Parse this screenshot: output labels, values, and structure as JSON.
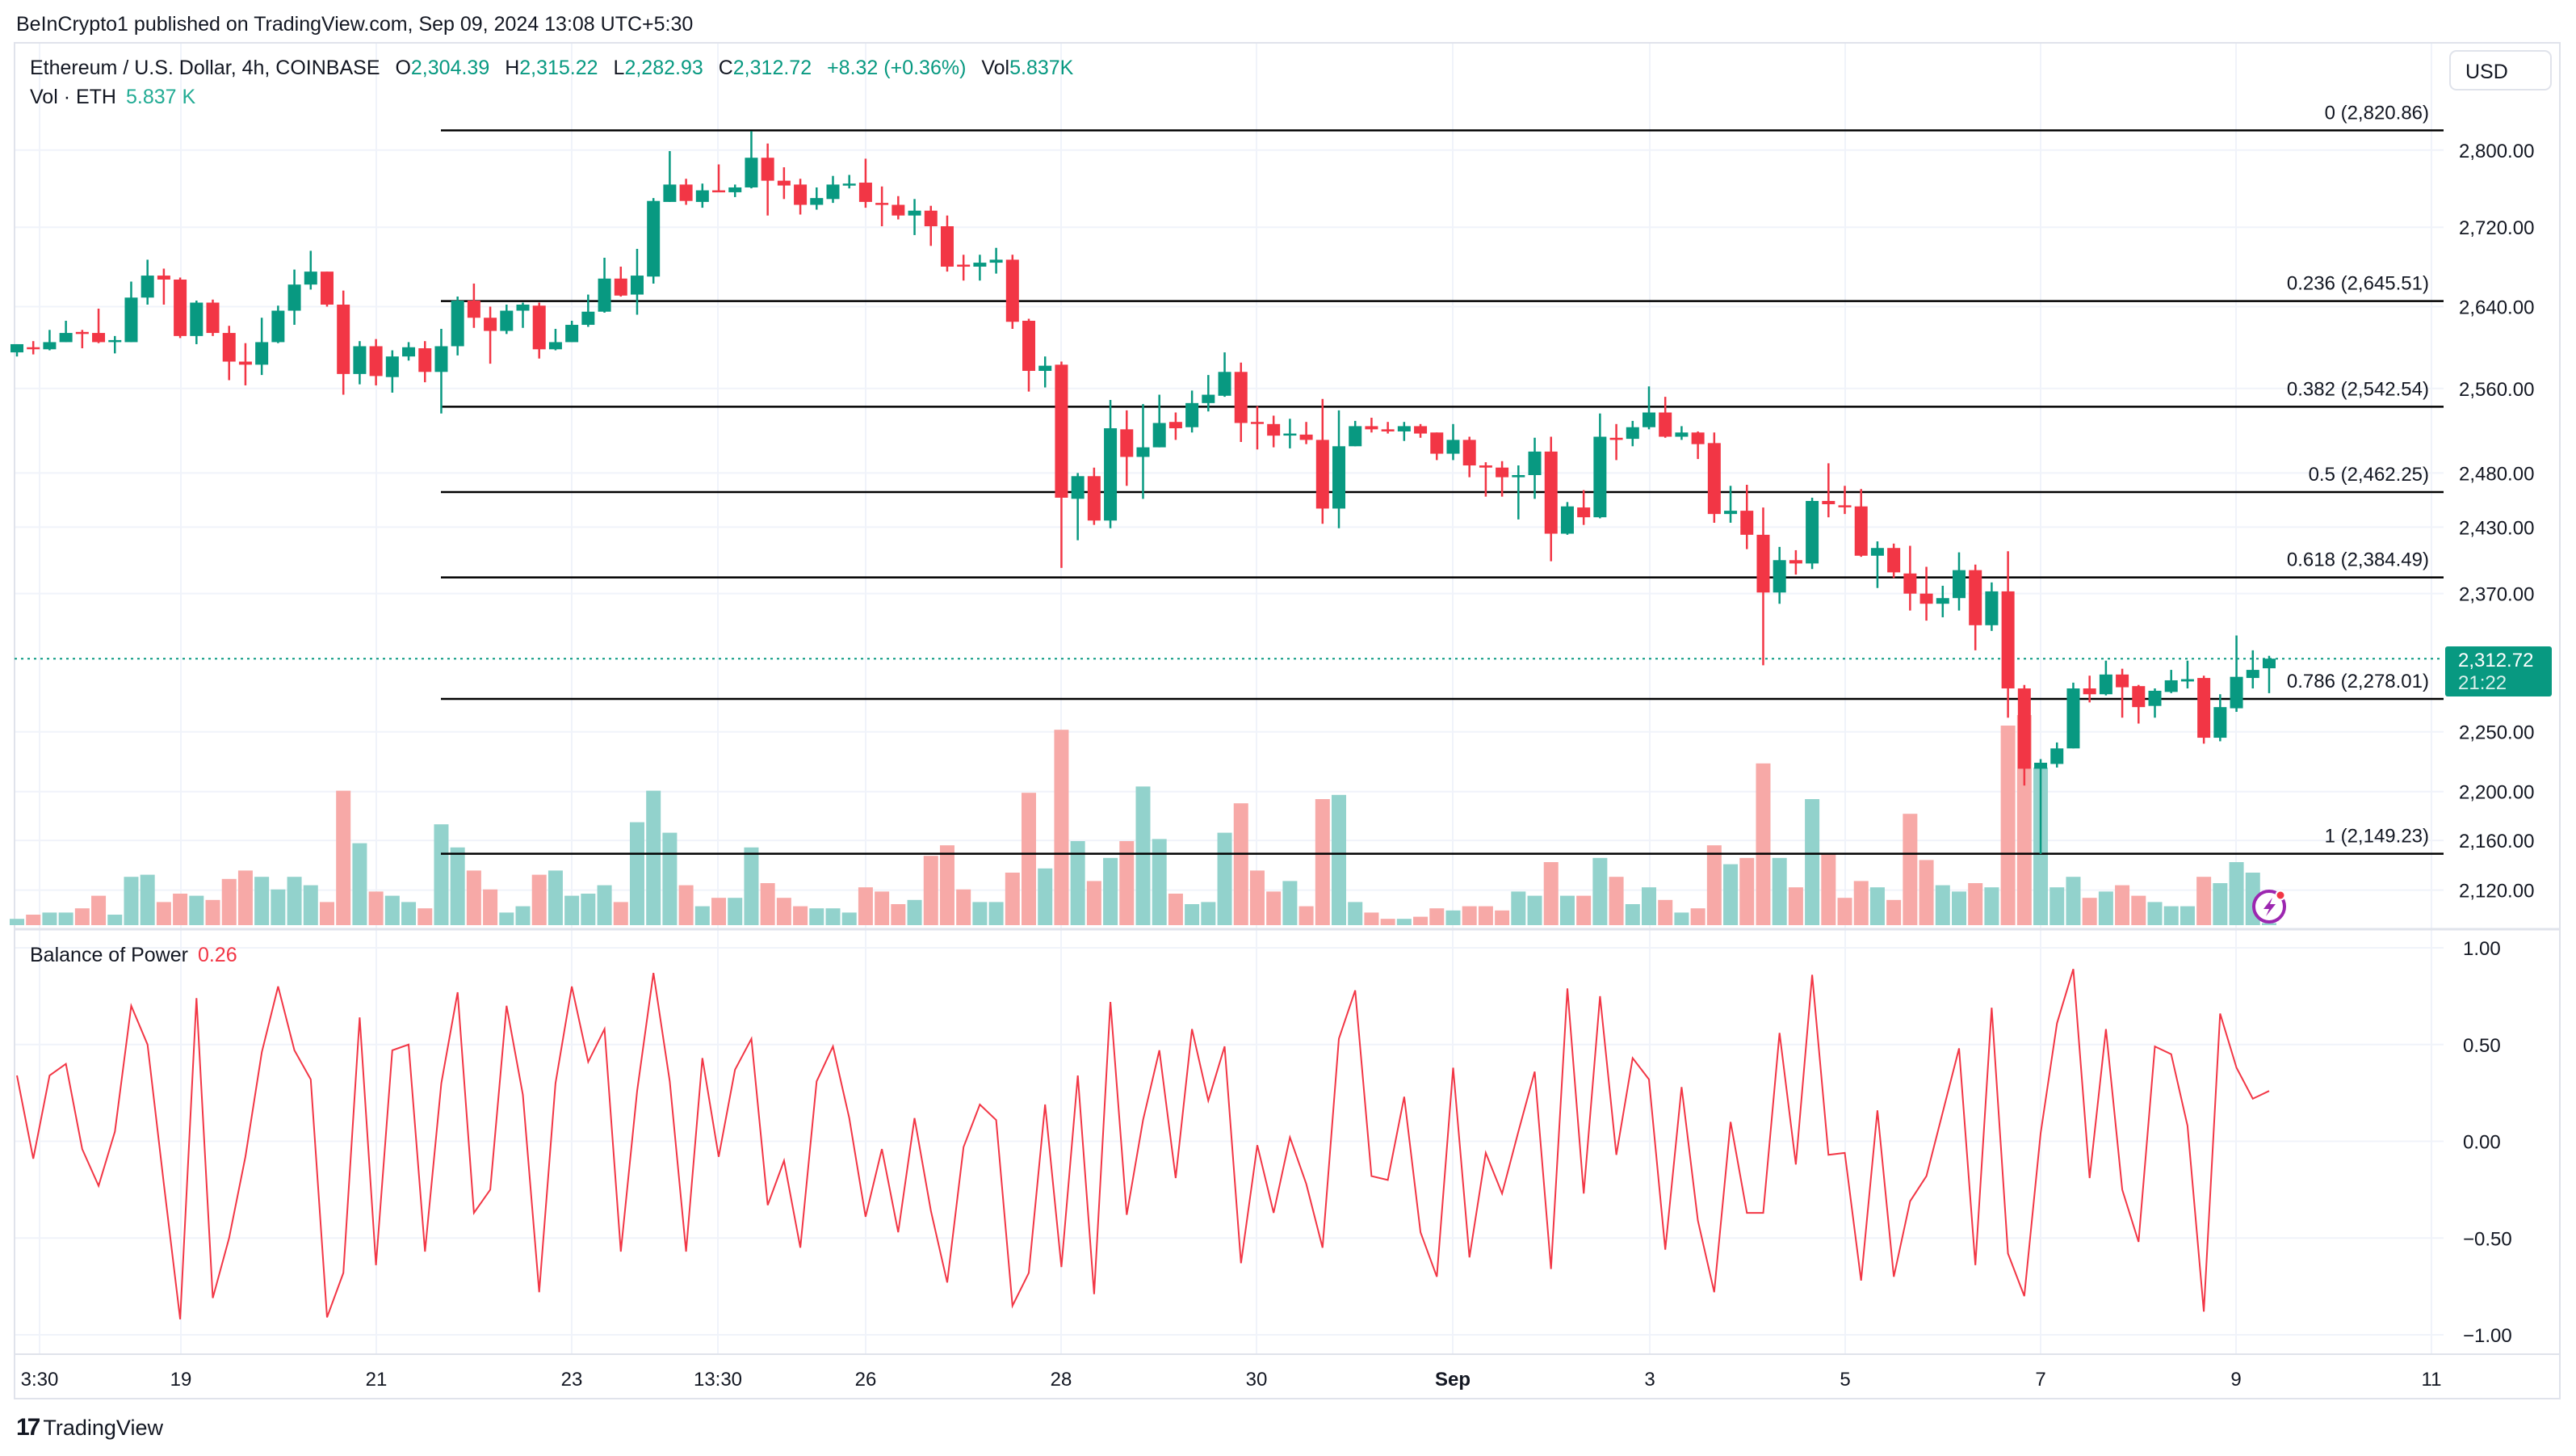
{
  "header": {
    "published": "BeInCrypto1 published on TradingView.com, Sep 09, 2024 13:08 UTC+5:30"
  },
  "legend": {
    "symbol": "Ethereum / U.S. Dollar, 4h, COINBASE",
    "open_label": "O",
    "open": "2,304.39",
    "high_label": "H",
    "high": "2,315.22",
    "low_label": "L",
    "low": "2,282.93",
    "close_label": "C",
    "close": "2,312.72",
    "change": "+8.32 (+0.36%)",
    "vol_label": "Vol",
    "vol": "5.837K"
  },
  "volume_legend": {
    "label": "Vol · ETH",
    "value": "5.837 K"
  },
  "currency_button": "USD",
  "price_badge": {
    "price": "2,312.72",
    "countdown": "21:22"
  },
  "indicator": {
    "name": "Balance of Power",
    "value": "0.26"
  },
  "footer": {
    "logo_mark": "17",
    "brand": "TradingView"
  },
  "colors": {
    "up": "#089981",
    "down": "#f23645",
    "up_volume": "#92d2cc",
    "down_volume": "#f7a9a7",
    "bop_line": "#f23645",
    "fib_line": "#000000",
    "indicator_icon": "#9c27b0"
  },
  "chart_data": [
    {
      "type": "candlestick",
      "title": "Ethereum / U.S. Dollar, 4h, COINBASE",
      "price_scale": "log",
      "y_ticks": [
        2800,
        2720,
        2640,
        2560,
        2480,
        2430,
        2370,
        2250,
        2200,
        2160,
        2120
      ],
      "y_tick_labels": [
        "2,800.00",
        "2,720.00",
        "2,640.00",
        "2,560.00",
        "2,480.00",
        "2,430.00",
        "2,370.00",
        "2,250.00",
        "2,200.00",
        "2,160.00",
        "2,120.00"
      ],
      "x_tick_labels": [
        "3:30",
        "19",
        "21",
        "23",
        "13:30",
        "26",
        "28",
        "30",
        "Sep",
        "3",
        "5",
        "7",
        "9",
        "11"
      ],
      "grid": true,
      "last_price": 2312.72,
      "fibonacci": [
        {
          "level": "0",
          "price": 2820.86,
          "label": "0 (2,820.86)"
        },
        {
          "level": "0.236",
          "price": 2645.51,
          "label": "0.236 (2,645.51)"
        },
        {
          "level": "0.382",
          "price": 2542.54,
          "label": "0.382 (2,542.54)"
        },
        {
          "level": "0.5",
          "price": 2462.25,
          "label": "0.5 (2,462.25)"
        },
        {
          "level": "0.618",
          "price": 2384.49,
          "label": "0.618 (2,384.49)"
        },
        {
          "level": "0.786",
          "price": 2278.01,
          "label": "0.786 (2,278.01)"
        },
        {
          "level": "1",
          "price": 2149.23,
          "label": "1 (2,149.23)"
        }
      ],
      "ohlc_fields": [
        "open",
        "high",
        "low",
        "close"
      ],
      "candles": [
        [
          2595,
          2603,
          2591,
          2603
        ],
        [
          2600,
          2606,
          2593,
          2599
        ],
        [
          2598,
          2617,
          2597,
          2605
        ],
        [
          2605,
          2626,
          2605,
          2614
        ],
        [
          2615,
          2617,
          2599,
          2614
        ],
        [
          2614,
          2638,
          2604,
          2605
        ],
        [
          2606,
          2611,
          2594,
          2607
        ],
        [
          2605,
          2665,
          2605,
          2649
        ],
        [
          2649,
          2687,
          2642,
          2671
        ],
        [
          2671,
          2678,
          2642,
          2667
        ],
        [
          2667,
          2669,
          2609,
          2611
        ],
        [
          2611,
          2646,
          2603,
          2644
        ],
        [
          2644,
          2647,
          2611,
          2614
        ],
        [
          2614,
          2621,
          2568,
          2586
        ],
        [
          2586,
          2604,
          2563,
          2583
        ],
        [
          2583,
          2629,
          2573,
          2605
        ],
        [
          2605,
          2641,
          2604,
          2636
        ],
        [
          2636,
          2677,
          2622,
          2662
        ],
        [
          2662,
          2696,
          2657,
          2675
        ],
        [
          2675,
          2675,
          2640,
          2642
        ],
        [
          2642,
          2656,
          2554,
          2574
        ],
        [
          2574,
          2606,
          2564,
          2601
        ],
        [
          2601,
          2608,
          2563,
          2572
        ],
        [
          2571,
          2597,
          2556,
          2591
        ],
        [
          2591,
          2605,
          2587,
          2600
        ],
        [
          2599,
          2606,
          2566,
          2576
        ],
        [
          2576,
          2618,
          2536,
          2601
        ],
        [
          2601,
          2650,
          2592,
          2646
        ],
        [
          2646,
          2663,
          2619,
          2629
        ],
        [
          2629,
          2640,
          2584,
          2616
        ],
        [
          2616,
          2642,
          2613,
          2636
        ],
        [
          2636,
          2644,
          2619,
          2642
        ],
        [
          2641,
          2644,
          2589,
          2598
        ],
        [
          2598,
          2618,
          2597,
          2605
        ],
        [
          2605,
          2626,
          2605,
          2622
        ],
        [
          2622,
          2652,
          2620,
          2635
        ],
        [
          2635,
          2689,
          2634,
          2668
        ],
        [
          2668,
          2680,
          2650,
          2651
        ],
        [
          2652,
          2698,
          2632,
          2671
        ],
        [
          2670,
          2750,
          2663,
          2747
        ],
        [
          2746,
          2799,
          2746,
          2764
        ],
        [
          2764,
          2770,
          2743,
          2747
        ],
        [
          2746,
          2765,
          2740,
          2758
        ],
        [
          2758,
          2785,
          2756,
          2756
        ],
        [
          2756,
          2764,
          2751,
          2761
        ],
        [
          2761,
          2820,
          2760,
          2792
        ],
        [
          2792,
          2807,
          2732,
          2768
        ],
        [
          2768,
          2782,
          2749,
          2763
        ],
        [
          2764,
          2770,
          2733,
          2743
        ],
        [
          2743,
          2761,
          2738,
          2750
        ],
        [
          2749,
          2773,
          2745,
          2764
        ],
        [
          2763,
          2774,
          2760,
          2765
        ],
        [
          2766,
          2791,
          2740,
          2746
        ],
        [
          2745,
          2762,
          2721,
          2743
        ],
        [
          2743,
          2752,
          2728,
          2732
        ],
        [
          2732,
          2749,
          2712,
          2737
        ],
        [
          2737,
          2742,
          2701,
          2721
        ],
        [
          2721,
          2732,
          2675,
          2680
        ],
        [
          2682,
          2692,
          2666,
          2680
        ],
        [
          2680,
          2692,
          2666,
          2684
        ],
        [
          2684,
          2699,
          2673,
          2687
        ],
        [
          2687,
          2692,
          2618,
          2625
        ],
        [
          2626,
          2628,
          2557,
          2577
        ],
        [
          2577,
          2591,
          2561,
          2582
        ],
        [
          2583,
          2586,
          2393,
          2457
        ],
        [
          2456,
          2480,
          2418,
          2477
        ],
        [
          2477,
          2485,
          2432,
          2436
        ],
        [
          2436,
          2549,
          2429,
          2522
        ],
        [
          2521,
          2539,
          2468,
          2495
        ],
        [
          2495,
          2545,
          2456,
          2504
        ],
        [
          2504,
          2554,
          2504,
          2527
        ],
        [
          2528,
          2537,
          2511,
          2522
        ],
        [
          2523,
          2558,
          2518,
          2546
        ],
        [
          2546,
          2573,
          2538,
          2554
        ],
        [
          2553,
          2595,
          2552,
          2576
        ],
        [
          2576,
          2585,
          2509,
          2527
        ],
        [
          2528,
          2543,
          2502,
          2527
        ],
        [
          2526,
          2534,
          2504,
          2515
        ],
        [
          2516,
          2531,
          2503,
          2517
        ],
        [
          2516,
          2528,
          2507,
          2511
        ],
        [
          2511,
          2550,
          2433,
          2447
        ],
        [
          2447,
          2539,
          2429,
          2505
        ],
        [
          2505,
          2529,
          2505,
          2524
        ],
        [
          2524,
          2532,
          2518,
          2521
        ],
        [
          2521,
          2528,
          2517,
          2519
        ],
        [
          2519,
          2528,
          2510,
          2524
        ],
        [
          2524,
          2526,
          2513,
          2517
        ],
        [
          2518,
          2518,
          2492,
          2498
        ],
        [
          2498,
          2526,
          2492,
          2511
        ],
        [
          2511,
          2514,
          2476,
          2487
        ],
        [
          2487,
          2490,
          2458,
          2485
        ],
        [
          2485,
          2491,
          2458,
          2476
        ],
        [
          2476,
          2487,
          2437,
          2478
        ],
        [
          2478,
          2513,
          2456,
          2500
        ],
        [
          2500,
          2514,
          2399,
          2424
        ],
        [
          2424,
          2453,
          2423,
          2449
        ],
        [
          2448,
          2464,
          2432,
          2439
        ],
        [
          2439,
          2536,
          2438,
          2514
        ],
        [
          2513,
          2526,
          2492,
          2511
        ],
        [
          2512,
          2529,
          2505,
          2523
        ],
        [
          2523,
          2562,
          2521,
          2537
        ],
        [
          2537,
          2552,
          2513,
          2514
        ],
        [
          2514,
          2524,
          2511,
          2518
        ],
        [
          2518,
          2519,
          2493,
          2507
        ],
        [
          2508,
          2518,
          2434,
          2442
        ],
        [
          2442,
          2468,
          2434,
          2445
        ],
        [
          2445,
          2469,
          2410,
          2423
        ],
        [
          2423,
          2448,
          2307,
          2371
        ],
        [
          2371,
          2412,
          2361,
          2400
        ],
        [
          2400,
          2409,
          2387,
          2397
        ],
        [
          2397,
          2457,
          2392,
          2454
        ],
        [
          2454,
          2489,
          2439,
          2451
        ],
        [
          2450,
          2468,
          2442,
          2449
        ],
        [
          2449,
          2465,
          2403,
          2404
        ],
        [
          2404,
          2417,
          2375,
          2411
        ],
        [
          2411,
          2415,
          2384,
          2389
        ],
        [
          2388,
          2413,
          2355,
          2370
        ],
        [
          2370,
          2394,
          2346,
          2361
        ],
        [
          2361,
          2377,
          2349,
          2366
        ],
        [
          2366,
          2407,
          2355,
          2391
        ],
        [
          2391,
          2396,
          2320,
          2342
        ],
        [
          2342,
          2380,
          2337,
          2372
        ],
        [
          2372,
          2408,
          2262,
          2287
        ],
        [
          2287,
          2290,
          2205,
          2219
        ],
        [
          2219,
          2227,
          2149,
          2224
        ],
        [
          2223,
          2241,
          2220,
          2236
        ],
        [
          2236,
          2292,
          2236,
          2287
        ],
        [
          2287,
          2298,
          2275,
          2282
        ],
        [
          2282,
          2311,
          2281,
          2299
        ],
        [
          2299,
          2304,
          2262,
          2288
        ],
        [
          2289,
          2290,
          2257,
          2271
        ],
        [
          2272,
          2287,
          2262,
          2285
        ],
        [
          2284,
          2303,
          2283,
          2294
        ],
        [
          2293,
          2311,
          2287,
          2295
        ],
        [
          2296,
          2298,
          2240,
          2245
        ],
        [
          2245,
          2282,
          2242,
          2271
        ],
        [
          2270,
          2333,
          2267,
          2297
        ],
        [
          2296,
          2320,
          2287,
          2303
        ],
        [
          2304.39,
          2315.22,
          2282.93,
          2312.72
        ]
      ],
      "volume_percent_of_max": [
        3,
        5,
        6,
        6,
        8,
        14,
        5,
        23,
        24,
        11,
        15,
        14,
        12,
        22,
        26,
        23,
        17,
        23,
        19,
        11,
        64,
        39,
        16,
        14,
        11,
        8,
        48,
        37,
        26,
        17,
        6,
        9,
        24,
        26,
        14,
        15,
        19,
        11,
        49,
        64,
        44,
        19,
        9,
        13,
        13,
        37,
        20,
        13,
        9,
        8,
        8,
        6,
        18,
        16,
        10,
        12,
        33,
        38,
        17,
        11,
        11,
        25,
        63,
        27,
        93,
        40,
        21,
        32,
        40,
        66,
        41,
        15,
        10,
        11,
        44,
        58,
        26,
        16,
        21,
        9,
        60,
        62,
        11,
        6,
        3,
        3,
        4,
        8,
        7,
        9,
        9,
        7,
        16,
        14,
        30,
        14,
        14,
        32,
        23,
        10,
        18,
        12,
        6,
        8,
        38,
        29,
        32,
        77,
        32,
        18,
        60,
        34,
        13,
        21,
        18,
        12,
        53,
        31,
        19,
        16,
        20,
        18,
        95,
        100,
        75,
        18,
        23,
        13,
        16,
        19,
        14,
        11,
        9,
        9,
        23,
        20,
        30,
        25,
        1
      ]
    },
    {
      "type": "line",
      "series": [
        {
          "name": "Balance of Power",
          "values": [
            0.34,
            -0.09,
            0.34,
            0.4,
            -0.04,
            -0.23,
            0.05,
            0.7,
            0.5,
            -0.22,
            -0.92,
            0.74,
            -0.81,
            -0.5,
            -0.08,
            0.46,
            0.8,
            0.47,
            0.32,
            -0.91,
            -0.68,
            0.64,
            -0.64,
            0.47,
            0.5,
            -0.57,
            0.3,
            0.77,
            -0.37,
            -0.25,
            0.7,
            0.24,
            -0.78,
            0.3,
            0.8,
            0.41,
            0.58,
            -0.57,
            0.26,
            0.87,
            0.31,
            -0.57,
            0.43,
            -0.08,
            0.37,
            0.53,
            -0.33,
            -0.1,
            -0.55,
            0.31,
            0.49,
            0.12,
            -0.39,
            -0.04,
            -0.47,
            0.12,
            -0.36,
            -0.73,
            -0.03,
            0.19,
            0.11,
            -0.85,
            -0.68,
            0.19,
            -0.65,
            0.34,
            -0.79,
            0.72,
            -0.38,
            0.11,
            0.47,
            -0.19,
            0.58,
            0.21,
            0.49,
            -0.63,
            -0.02,
            -0.37,
            0.02,
            -0.22,
            -0.55,
            0.53,
            0.78,
            -0.18,
            -0.2,
            0.23,
            -0.47,
            -0.7,
            0.38,
            -0.6,
            -0.06,
            -0.27,
            0.05,
            0.36,
            -0.66,
            0.79,
            -0.27,
            0.75,
            -0.07,
            0.43,
            0.32,
            -0.56,
            0.28,
            -0.41,
            -0.78,
            0.1,
            -0.37,
            -0.37,
            0.56,
            -0.12,
            0.86,
            -0.07,
            -0.06,
            -0.72,
            0.16,
            -0.7,
            -0.31,
            -0.18,
            0.15,
            0.48,
            -0.64,
            0.69,
            -0.58,
            -0.8,
            0.04,
            0.61,
            0.89,
            -0.19,
            0.58,
            -0.25,
            -0.52,
            0.49,
            0.45,
            0.08,
            -0.88,
            0.66,
            0.38,
            0.22,
            0.26
          ]
        }
      ],
      "y_ticks": [
        1,
        0.5,
        0,
        -0.5,
        -1
      ],
      "y_tick_labels": [
        "1.00",
        "0.50",
        "0.00",
        "−0.50",
        "−1.00"
      ],
      "ylim": [
        -1,
        1
      ]
    }
  ]
}
